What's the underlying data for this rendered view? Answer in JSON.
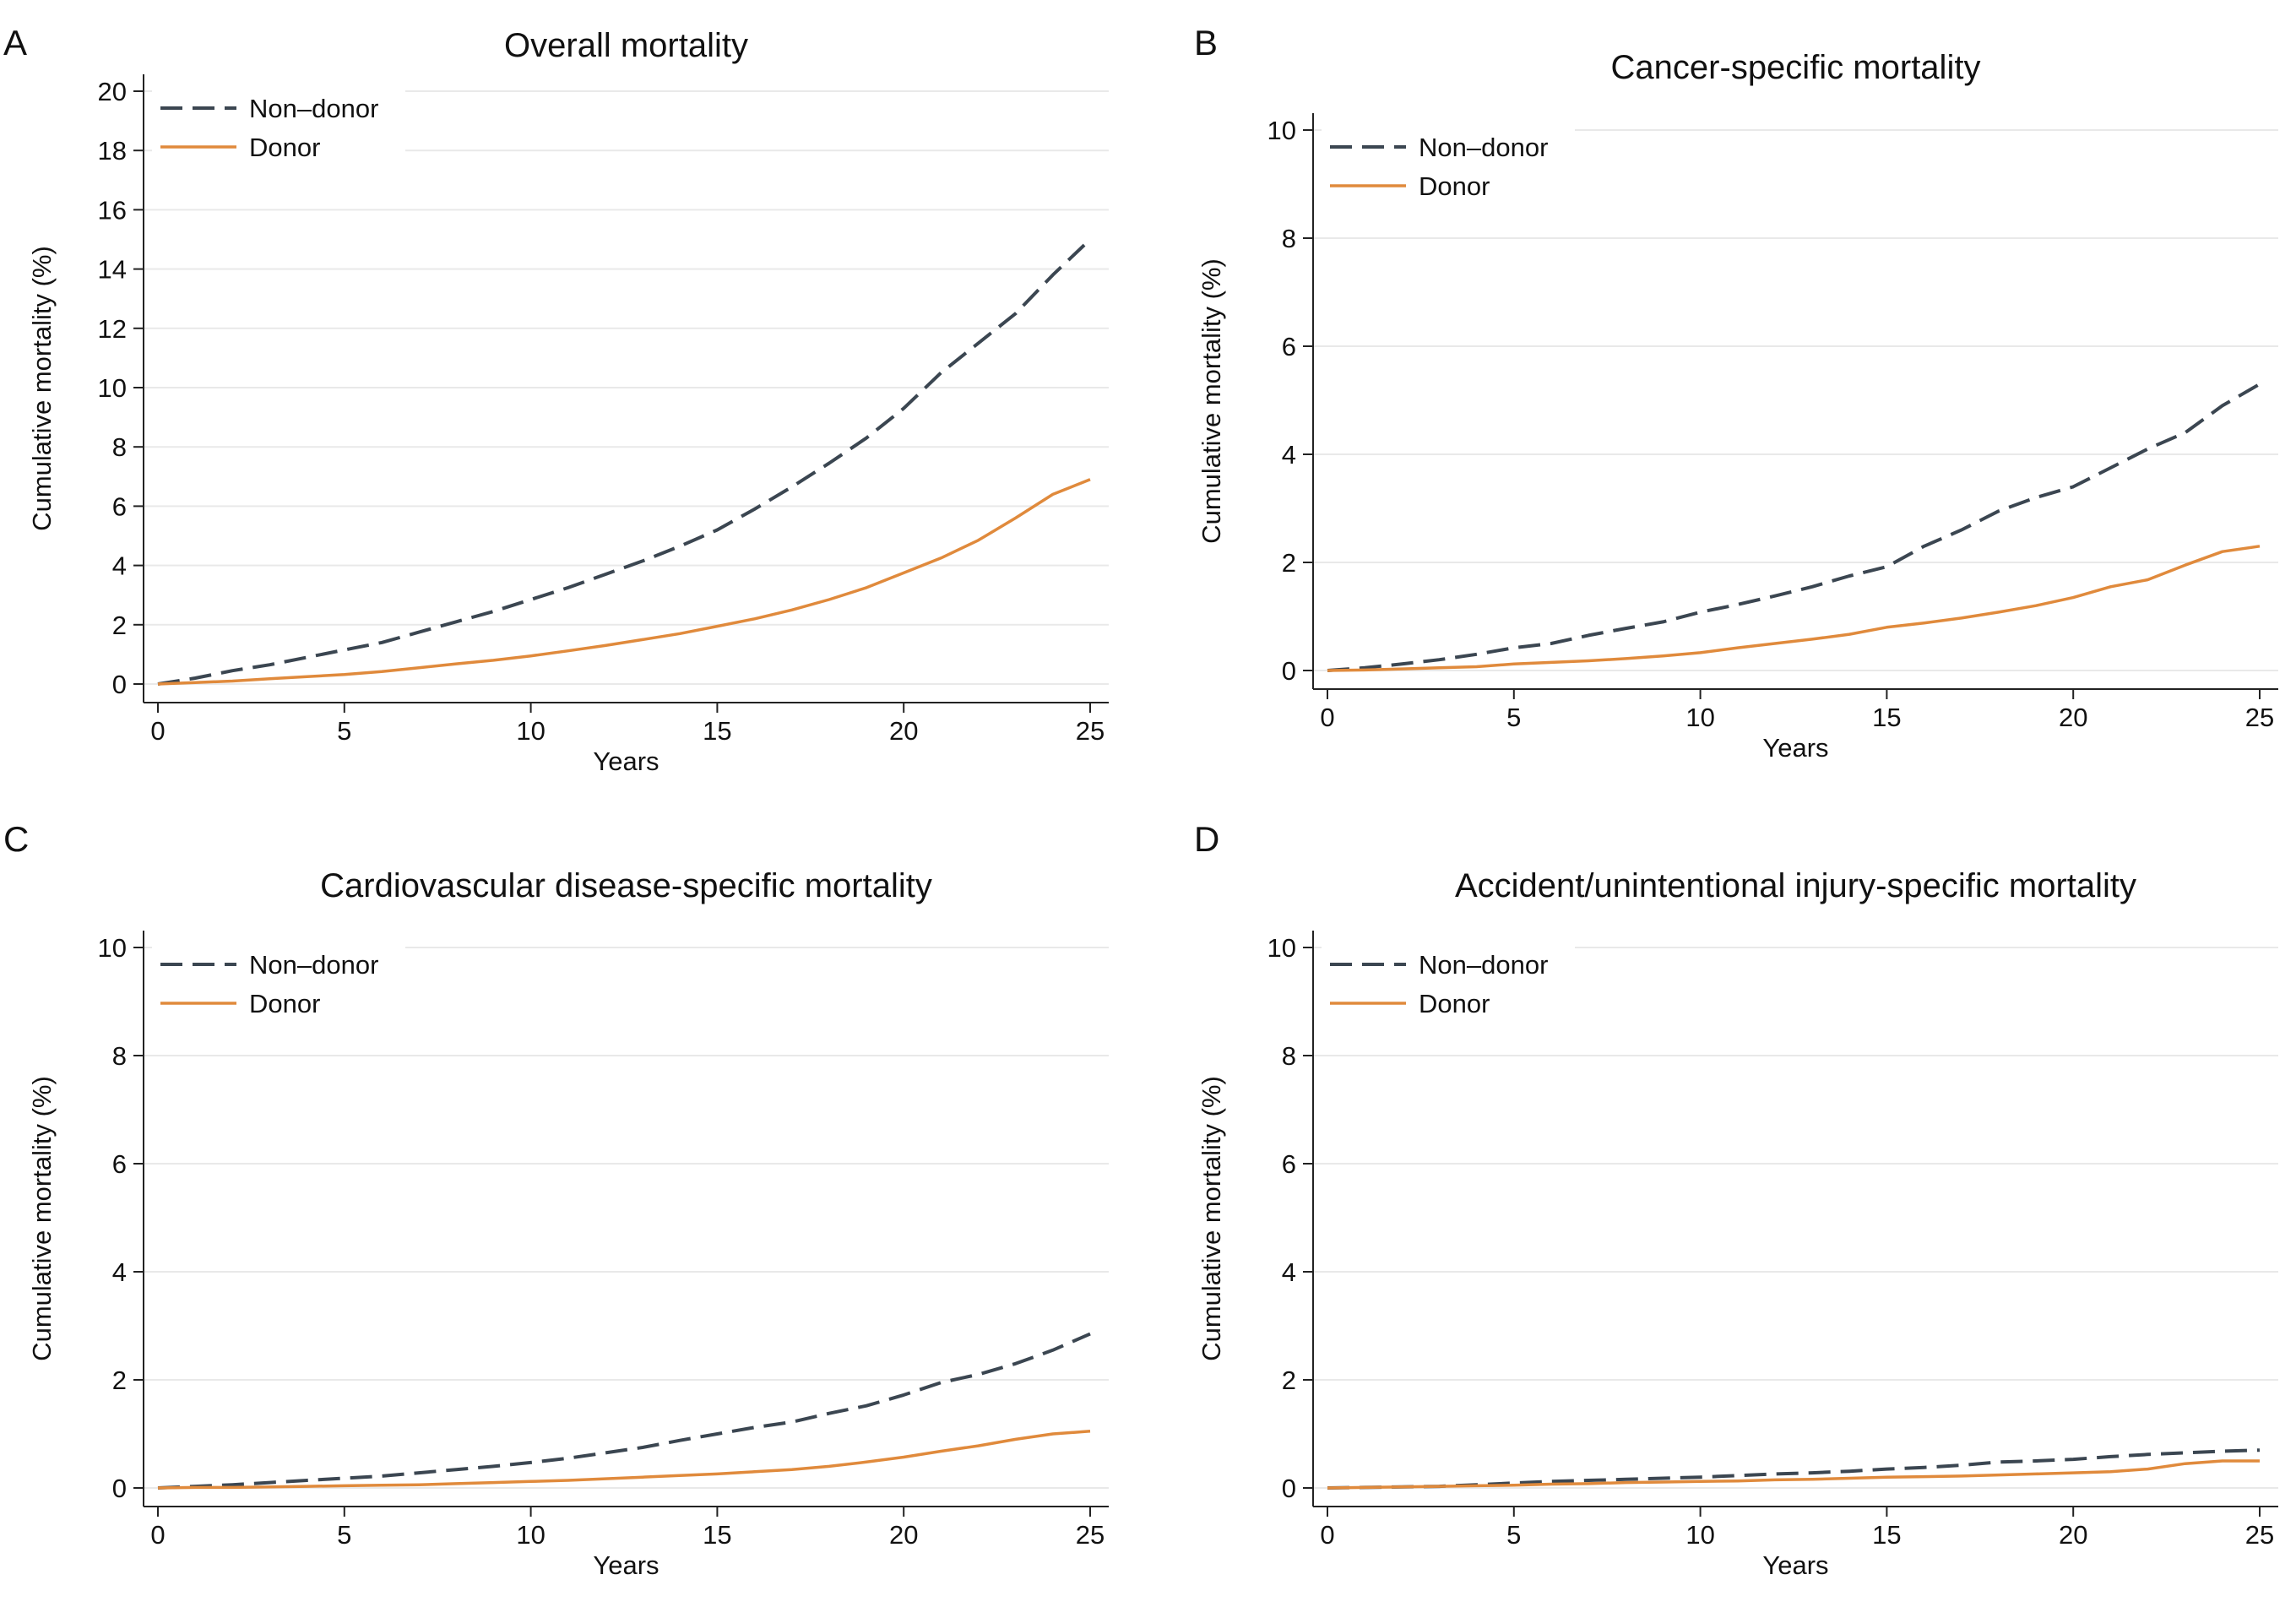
{
  "figure": {
    "panels": [
      "A",
      "B",
      "C",
      "D"
    ]
  },
  "colors": {
    "non_donor": "#3b4651",
    "donor": "#e08a3c",
    "grid": "#e9e9e9",
    "axis": "#222222"
  },
  "chart_data": [
    {
      "panel": "A",
      "type": "line",
      "title": "Overall mortality",
      "xlabel": "Years",
      "ylabel": "Cumulative mortality (%)",
      "xlim": [
        0,
        25
      ],
      "ylim": [
        0,
        20
      ],
      "xticks": [
        0,
        5,
        10,
        15,
        20,
        25
      ],
      "yticks": [
        0,
        2,
        4,
        6,
        8,
        10,
        12,
        14,
        16,
        18,
        20
      ],
      "grid": true,
      "legend": "top-left",
      "series": [
        {
          "name": "Non–donor",
          "style": "dashed",
          "x": [
            0,
            1,
            2,
            3,
            4,
            5,
            6,
            7,
            8,
            9,
            10,
            11,
            12,
            13,
            14,
            15,
            16,
            17,
            18,
            19,
            20,
            21,
            22,
            23,
            24,
            25
          ],
          "y": [
            0,
            0.2,
            0.45,
            0.65,
            0.9,
            1.15,
            1.4,
            1.75,
            2.1,
            2.45,
            2.85,
            3.25,
            3.7,
            4.15,
            4.65,
            5.2,
            5.9,
            6.65,
            7.45,
            8.3,
            9.3,
            10.5,
            11.5,
            12.5,
            13.8,
            15.0
          ]
        },
        {
          "name": "Donor",
          "style": "solid",
          "x": [
            0,
            1,
            2,
            3,
            4,
            5,
            6,
            7,
            8,
            9,
            10,
            11,
            12,
            13,
            14,
            15,
            16,
            17,
            18,
            19,
            20,
            21,
            22,
            23,
            24,
            25
          ],
          "y": [
            0,
            0.05,
            0.1,
            0.18,
            0.25,
            0.32,
            0.42,
            0.55,
            0.68,
            0.8,
            0.95,
            1.12,
            1.3,
            1.5,
            1.7,
            1.95,
            2.2,
            2.5,
            2.85,
            3.25,
            3.75,
            4.25,
            4.85,
            5.6,
            6.4,
            6.9
          ]
        }
      ]
    },
    {
      "panel": "B",
      "type": "line",
      "title": "Cancer-specific mortality",
      "xlabel": "Years",
      "ylabel": "Cumulative mortality (%)",
      "xlim": [
        0,
        25
      ],
      "ylim": [
        0,
        10
      ],
      "xticks": [
        0,
        5,
        10,
        15,
        20,
        25
      ],
      "yticks": [
        0,
        2,
        4,
        6,
        8,
        10
      ],
      "grid": true,
      "legend": "top-left",
      "series": [
        {
          "name": "Non–donor",
          "style": "dashed",
          "x": [
            0,
            1,
            2,
            3,
            4,
            5,
            6,
            7,
            8,
            9,
            10,
            11,
            12,
            13,
            14,
            15,
            16,
            17,
            18,
            19,
            20,
            21,
            22,
            23,
            24,
            25
          ],
          "y": [
            0,
            0.05,
            0.12,
            0.2,
            0.3,
            0.42,
            0.5,
            0.65,
            0.78,
            0.9,
            1.08,
            1.22,
            1.38,
            1.55,
            1.75,
            1.92,
            2.3,
            2.6,
            2.95,
            3.2,
            3.4,
            3.75,
            4.1,
            4.4,
            4.9,
            5.3
          ]
        },
        {
          "name": "Donor",
          "style": "solid",
          "x": [
            0,
            1,
            2,
            3,
            4,
            5,
            6,
            7,
            8,
            9,
            10,
            11,
            12,
            13,
            14,
            15,
            16,
            17,
            18,
            19,
            20,
            21,
            22,
            23,
            24,
            25
          ],
          "y": [
            0,
            0.01,
            0.03,
            0.05,
            0.07,
            0.12,
            0.15,
            0.18,
            0.22,
            0.27,
            0.33,
            0.42,
            0.5,
            0.58,
            0.67,
            0.8,
            0.88,
            0.97,
            1.08,
            1.2,
            1.35,
            1.55,
            1.68,
            1.95,
            2.2,
            2.3
          ]
        }
      ]
    },
    {
      "panel": "C",
      "type": "line",
      "title": "Cardiovascular disease-specific mortality",
      "xlabel": "Years",
      "ylabel": "Cumulative mortality (%)",
      "xlim": [
        0,
        25
      ],
      "ylim": [
        0,
        10
      ],
      "xticks": [
        0,
        5,
        10,
        15,
        20,
        25
      ],
      "yticks": [
        0,
        2,
        4,
        6,
        8,
        10
      ],
      "grid": true,
      "legend": "top-left",
      "series": [
        {
          "name": "Non–donor",
          "style": "dashed",
          "x": [
            0,
            1,
            2,
            3,
            4,
            5,
            6,
            7,
            8,
            9,
            10,
            11,
            12,
            13,
            14,
            15,
            16,
            17,
            18,
            19,
            20,
            21,
            22,
            23,
            24,
            25
          ],
          "y": [
            0,
            0.03,
            0.06,
            0.1,
            0.14,
            0.18,
            0.22,
            0.28,
            0.34,
            0.4,
            0.47,
            0.55,
            0.65,
            0.75,
            0.88,
            1.0,
            1.12,
            1.22,
            1.38,
            1.52,
            1.72,
            1.95,
            2.1,
            2.3,
            2.55,
            2.85
          ]
        },
        {
          "name": "Donor",
          "style": "solid",
          "x": [
            0,
            1,
            2,
            3,
            4,
            5,
            6,
            7,
            8,
            9,
            10,
            11,
            12,
            13,
            14,
            15,
            16,
            17,
            18,
            19,
            20,
            21,
            22,
            23,
            24,
            25
          ],
          "y": [
            0,
            0.01,
            0.01,
            0.02,
            0.03,
            0.04,
            0.05,
            0.06,
            0.08,
            0.1,
            0.12,
            0.14,
            0.17,
            0.2,
            0.23,
            0.26,
            0.3,
            0.34,
            0.4,
            0.48,
            0.57,
            0.68,
            0.78,
            0.9,
            1.0,
            1.05
          ]
        }
      ]
    },
    {
      "panel": "D",
      "type": "line",
      "title": "Accident/unintentional injury-specific mortality",
      "xlabel": "Years",
      "ylabel": "Cumulative mortality (%)",
      "xlim": [
        0,
        25
      ],
      "ylim": [
        0,
        10
      ],
      "xticks": [
        0,
        5,
        10,
        15,
        20,
        25
      ],
      "yticks": [
        0,
        2,
        4,
        6,
        8,
        10
      ],
      "grid": true,
      "legend": "top-left",
      "series": [
        {
          "name": "Non–donor",
          "style": "dashed",
          "x": [
            0,
            1,
            2,
            3,
            4,
            5,
            6,
            7,
            8,
            9,
            10,
            11,
            12,
            13,
            14,
            15,
            16,
            17,
            18,
            19,
            20,
            21,
            22,
            23,
            24,
            25
          ],
          "y": [
            0,
            0.01,
            0.02,
            0.03,
            0.06,
            0.09,
            0.12,
            0.14,
            0.16,
            0.18,
            0.2,
            0.23,
            0.26,
            0.28,
            0.31,
            0.35,
            0.38,
            0.42,
            0.48,
            0.5,
            0.53,
            0.58,
            0.62,
            0.65,
            0.68,
            0.7
          ]
        },
        {
          "name": "Donor",
          "style": "solid",
          "x": [
            0,
            1,
            2,
            3,
            4,
            5,
            6,
            7,
            8,
            9,
            10,
            11,
            12,
            13,
            14,
            15,
            16,
            17,
            18,
            19,
            20,
            21,
            22,
            23,
            24,
            25
          ],
          "y": [
            0,
            0.01,
            0.02,
            0.03,
            0.04,
            0.05,
            0.07,
            0.08,
            0.1,
            0.11,
            0.12,
            0.13,
            0.15,
            0.16,
            0.18,
            0.2,
            0.21,
            0.22,
            0.24,
            0.26,
            0.28,
            0.3,
            0.35,
            0.45,
            0.5,
            0.5
          ]
        }
      ]
    }
  ]
}
